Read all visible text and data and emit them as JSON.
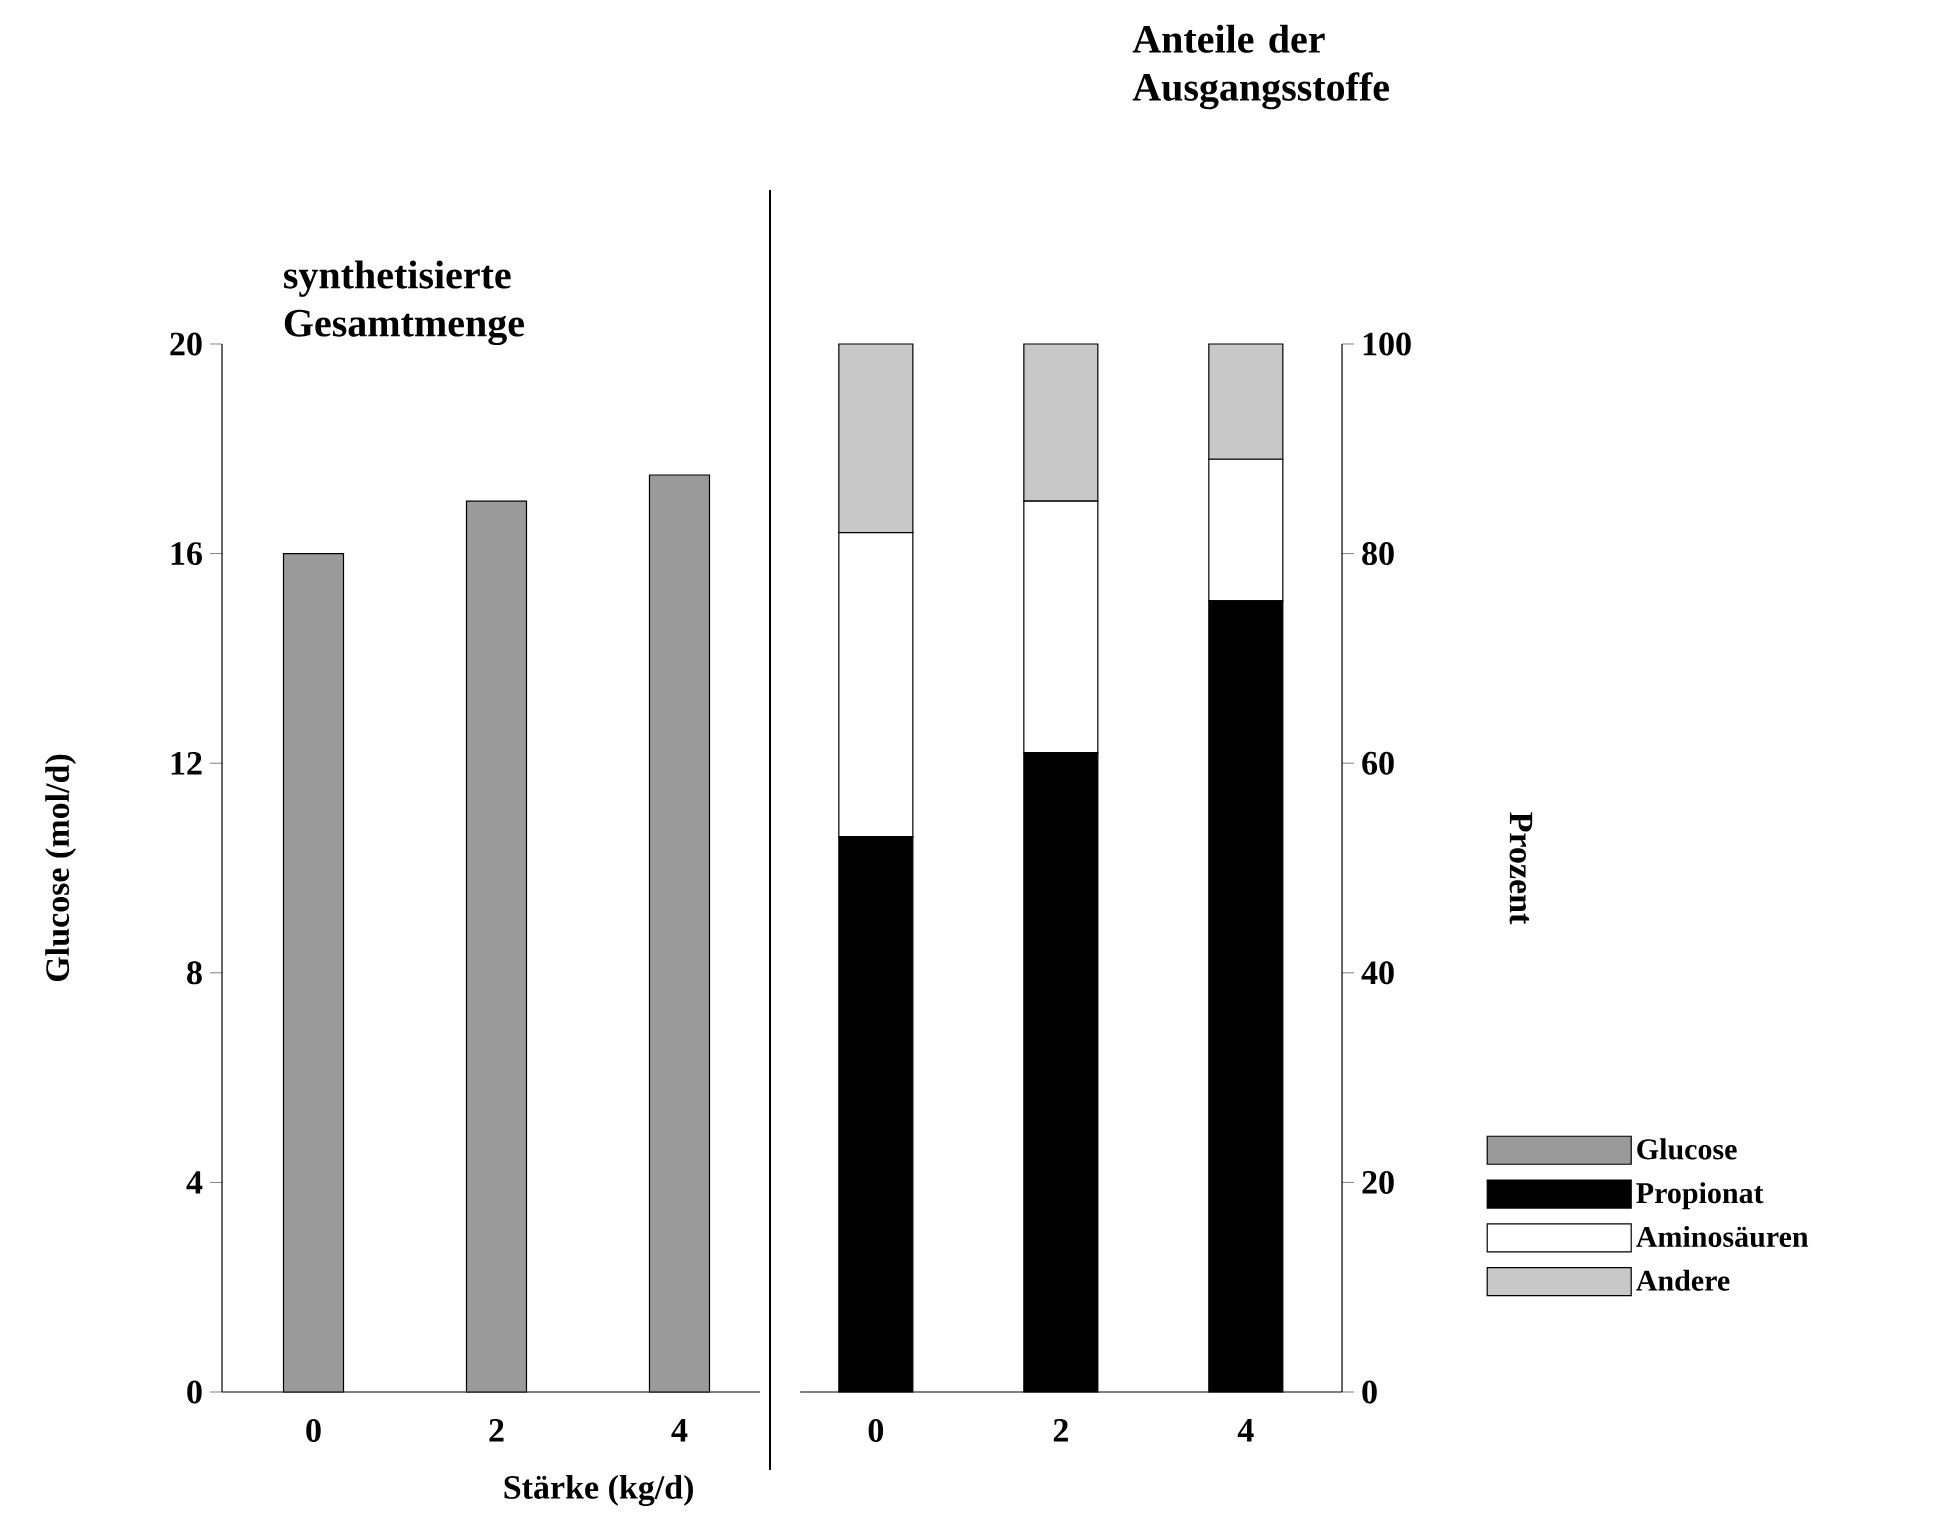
{
  "chart_data": [
    {
      "type": "bar",
      "title": "synthetisierte Gesamtmenge",
      "xlabel": "Stärke (kg/d)",
      "ylabel": "Glucose (mol/d)",
      "categories": [
        "0",
        "2",
        "4"
      ],
      "series": [
        {
          "name": "Glucose",
          "color": "#9a9a9a",
          "values": [
            16,
            17,
            17.5
          ]
        }
      ],
      "ylim": [
        0,
        20
      ],
      "yticks": [
        0,
        4,
        8,
        12,
        16,
        20
      ]
    },
    {
      "type": "bar",
      "title": "Anteile der Ausgangsstoffe",
      "ylabel": "Prozent",
      "categories": [
        "0",
        "2",
        "4"
      ],
      "stacked": true,
      "series": [
        {
          "name": "Propionat",
          "color": "#000000",
          "values": [
            53,
            61,
            75.5
          ]
        },
        {
          "name": "Aminosäuren",
          "color": "#ffffff",
          "values": [
            29,
            24,
            13.5
          ]
        },
        {
          "name": "Andere",
          "color": "#c8c8c8",
          "values": [
            18,
            15,
            11
          ]
        }
      ],
      "ylim": [
        0,
        100
      ],
      "yticks": [
        0,
        20,
        40,
        60,
        80,
        100
      ],
      "legend": "bottom right"
    }
  ]
}
